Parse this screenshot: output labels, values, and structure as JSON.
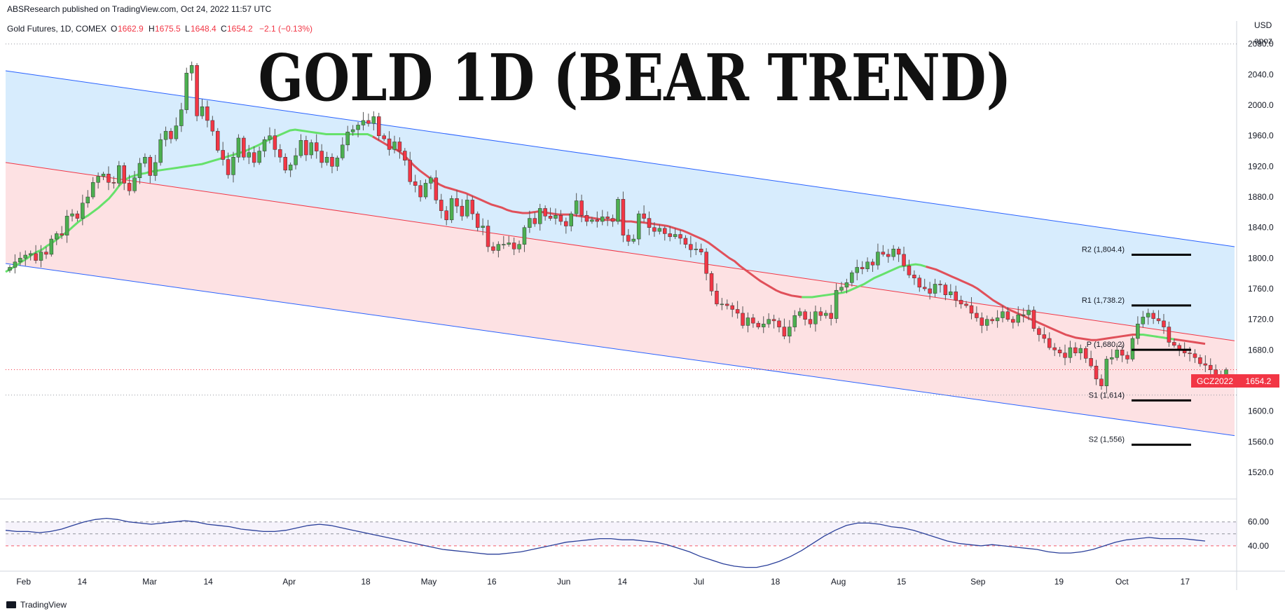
{
  "header": {
    "published": "ABSResearch published on TradingView.com, Oct 24, 2022 11:57 UTC",
    "symbol": "Gold Futures, 1D, COMEX",
    "o_label": "O",
    "o_value": "1662.9",
    "h_label": "H",
    "h_value": "1675.5",
    "l_label": "L",
    "l_value": "1648.4",
    "c_label": "C",
    "c_value": "1654.2",
    "change": "−2.1 (−0.13%)"
  },
  "currency": "USD",
  "scale_mode": "apoz",
  "footer": {
    "brand": "TradingView"
  },
  "colors": {
    "up": "#4caf50",
    "down": "#f23645",
    "ma_fast": "#66e16b",
    "ma_slow": "#e0505a",
    "channel_blue": "#2962ff",
    "channel_red": "#f23645",
    "levels": "#000000",
    "rsi": "#2a3f9a"
  },
  "chart_data": [
    {
      "type": "candlestick",
      "title": "GOLD 1D (BEAR TREND)",
      "y_ticks": [
        "2080.0",
        "2040.0",
        "2000.0",
        "1960.0",
        "1920.0",
        "1880.0",
        "1840.0",
        "1800.0",
        "1760.0",
        "1720.0",
        "1680.0",
        "1640.0",
        "1600.0",
        "1560.0",
        "1520.0"
      ],
      "ylim": [
        1487,
        2110
      ],
      "x_ticks": [
        "Feb",
        "14",
        "Mar",
        "14",
        "Apr",
        "18",
        "May",
        "16",
        "Jun",
        "14",
        "Jul",
        "18",
        "Aug",
        "15",
        "Sep",
        "19",
        "Oct",
        "17"
      ],
      "x_tick_dates": [
        "2022-02-01",
        "2022-02-14",
        "2022-03-01",
        "2022-03-14",
        "2022-04-01",
        "2022-04-18",
        "2022-05-02",
        "2022-05-16",
        "2022-06-01",
        "2022-06-14",
        "2022-07-01",
        "2022-07-18",
        "2022-08-01",
        "2022-08-15",
        "2022-09-01",
        "2022-09-19",
        "2022-10-03",
        "2022-10-17"
      ],
      "grid": false,
      "candles_close": [
        1788,
        1795,
        1800,
        1804,
        1806,
        1797,
        1808,
        1805,
        1825,
        1832,
        1830,
        1855,
        1858,
        1852,
        1872,
        1880,
        1899,
        1907,
        1910,
        1899,
        1898,
        1921,
        1898,
        1888,
        1905,
        1924,
        1932,
        1908,
        1925,
        1955,
        1966,
        1956,
        1973,
        1994,
        2042,
        2052,
        1986,
        1998,
        1980,
        1966,
        1941,
        1929,
        1909,
        1932,
        1957,
        1932,
        1938,
        1925,
        1940,
        1955,
        1960,
        1942,
        1932,
        1915,
        1922,
        1934,
        1954,
        1935,
        1951,
        1940,
        1925,
        1932,
        1920,
        1931,
        1948,
        1965,
        1968,
        1974,
        1980,
        1976,
        1985,
        1960,
        1956,
        1942,
        1952,
        1940,
        1928,
        1900,
        1895,
        1880,
        1898,
        1905,
        1876,
        1862,
        1850,
        1878,
        1868,
        1855,
        1876,
        1858,
        1840,
        1842,
        1815,
        1810,
        1818,
        1818,
        1820,
        1812,
        1818,
        1840,
        1852,
        1845,
        1865,
        1855,
        1852,
        1856,
        1848,
        1842,
        1858,
        1875,
        1856,
        1848,
        1850,
        1848,
        1854,
        1852,
        1848,
        1877,
        1830,
        1822,
        1825,
        1858,
        1852,
        1840,
        1835,
        1839,
        1832,
        1828,
        1831,
        1826,
        1818,
        1811,
        1812,
        1808,
        1780,
        1757,
        1740,
        1740,
        1738,
        1733,
        1728,
        1712,
        1722,
        1715,
        1710,
        1714,
        1720,
        1718,
        1710,
        1698,
        1710,
        1725,
        1730,
        1720,
        1714,
        1730,
        1725,
        1728,
        1721,
        1758,
        1762,
        1768,
        1781,
        1788,
        1786,
        1795,
        1791,
        1808,
        1805,
        1802,
        1812,
        1805,
        1790,
        1778,
        1774,
        1762,
        1760,
        1754,
        1766,
        1765,
        1752,
        1756,
        1745,
        1740,
        1738,
        1728,
        1722,
        1712,
        1720,
        1718,
        1722,
        1730,
        1720,
        1716,
        1726,
        1726,
        1732,
        1708,
        1700,
        1695,
        1683,
        1680,
        1676,
        1670,
        1683,
        1676,
        1682,
        1669,
        1659,
        1642,
        1633,
        1668,
        1670,
        1680,
        1673,
        1668,
        1695,
        1714,
        1723,
        1728,
        1721,
        1718,
        1710,
        1690,
        1686,
        1680,
        1676,
        1675,
        1670,
        1662,
        1660,
        1654,
        1648,
        1648,
        1654
      ],
      "series": [
        {
          "name": "MA 20",
          "values": [
            1782,
            1786,
            1790,
            1795,
            1799,
            1804,
            1808,
            1811,
            1816,
            1820,
            1825,
            1830,
            1835,
            1841,
            1847,
            1852,
            1856,
            1861,
            1866,
            1872,
            1878,
            1886,
            1895,
            1902,
            1906,
            1908,
            1910,
            1911,
            1913,
            1914,
            1915,
            1916,
            1917,
            1918,
            1919,
            1920,
            1921,
            1922,
            1923,
            1925,
            1927,
            1929,
            1931,
            1933,
            1935,
            1937,
            1939,
            1942,
            1945,
            1948,
            1952,
            1955,
            1958,
            1961,
            1964,
            1967,
            1968,
            1967,
            1966,
            1965,
            1964,
            1963,
            1962,
            1962,
            1962,
            1962,
            1962,
            1962,
            1962,
            1962,
            1962,
            1959,
            1955,
            1951,
            1947,
            1944,
            1940,
            1935,
            1928,
            1921,
            1915,
            1910,
            1905,
            1900,
            1896,
            1893,
            1891,
            1889,
            1887,
            1885,
            1882,
            1879,
            1876,
            1873,
            1870,
            1868,
            1866,
            1863,
            1861,
            1860,
            1859,
            1859,
            1860,
            1861,
            1860,
            1859,
            1858,
            1857,
            1857,
            1857,
            1856,
            1855,
            1854,
            1853,
            1852,
            1851,
            1850,
            1850,
            1850,
            1849,
            1848,
            1848,
            1847,
            1847,
            1846,
            1845,
            1844,
            1843,
            1842,
            1840,
            1838,
            1836,
            1833,
            1830,
            1827,
            1824,
            1820,
            1815,
            1810,
            1805,
            1800,
            1796,
            1790,
            1785,
            1780,
            1775,
            1770,
            1766,
            1762,
            1758,
            1755,
            1753,
            1751,
            1750,
            1749,
            1749,
            1749,
            1750,
            1751,
            1752,
            1753,
            1754,
            1755,
            1757,
            1760,
            1763,
            1766,
            1770,
            1774,
            1777,
            1780,
            1783,
            1786,
            1789,
            1790,
            1791,
            1792,
            1791,
            1789,
            1787,
            1785,
            1782,
            1779,
            1776,
            1773,
            1770,
            1767,
            1764,
            1760,
            1755,
            1750,
            1745,
            1741,
            1737,
            1733,
            1730,
            1727,
            1724,
            1721,
            1718,
            1715,
            1712,
            1709,
            1706,
            1703,
            1700,
            1698,
            1696,
            1695,
            1694,
            1693,
            1693,
            1694,
            1695,
            1696,
            1697,
            1698,
            1699,
            1700,
            1700,
            1700,
            1699,
            1698,
            1697,
            1696,
            1695,
            1694,
            1693,
            1692,
            1691,
            1690,
            1689,
            1688
          ]
        },
        {
          "name": "RSI",
          "values": [
            53,
            52,
            52,
            51,
            52,
            54,
            57,
            60,
            62,
            63,
            62,
            60,
            59,
            58,
            59,
            60,
            61,
            60,
            58,
            57,
            56,
            54,
            53,
            52,
            52,
            53,
            55,
            57,
            58,
            57,
            55,
            53,
            51,
            49,
            47,
            45,
            43,
            41,
            39,
            37,
            36,
            35,
            34,
            33,
            33,
            34,
            35,
            37,
            39,
            41,
            43,
            44,
            45,
            46,
            46,
            45,
            45,
            44,
            43,
            41,
            38,
            35,
            31,
            28,
            25,
            23,
            22,
            22,
            24,
            27,
            31,
            36,
            42,
            48,
            53,
            57,
            59,
            59,
            58,
            56,
            55,
            53,
            50,
            47,
            44,
            42,
            41,
            40,
            41,
            40,
            39,
            38,
            37,
            35,
            34,
            34,
            35,
            37,
            40,
            43,
            45,
            46,
            47,
            46,
            46,
            46,
            45,
            44
          ]
        }
      ],
      "levels": [
        {
          "label": "R2 (1,804.4)",
          "value": 1804.4
        },
        {
          "label": "R1 (1,738.2)",
          "value": 1738.2
        },
        {
          "label": "P (1,680.2)",
          "value": 1680.2
        },
        {
          "label": "S1 (1,614)",
          "value": 1614
        },
        {
          "label": "S2 (1,556)",
          "value": 1556
        }
      ],
      "hlines": [
        2080,
        1654.2,
        1621
      ],
      "last_price": {
        "ticker": "GCZ2022",
        "value": "1654.2"
      },
      "channels": {
        "blue_upper": [
          2045,
          1815
        ],
        "red_upper": [
          1925,
          1692
        ],
        "lower": [
          1793,
          1568
        ]
      }
    },
    {
      "type": "line",
      "name": "RSI",
      "y_ticks": [
        "60.00",
        "40.00"
      ],
      "bands": [
        60,
        50,
        40
      ]
    }
  ]
}
